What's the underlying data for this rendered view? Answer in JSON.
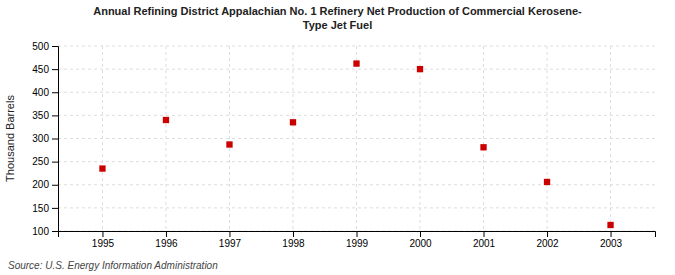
{
  "chart_data": {
    "type": "scatter",
    "title": "Annual Refining District Appalachian No. 1 Refinery Net Production of Commercial Kerosene-\nType Jet Fuel",
    "ylabel": "Thousand Barrels",
    "annotations": [
      "Source: U.S. Energy Information Administration"
    ],
    "x": [
      1995,
      1996,
      1997,
      1998,
      1999,
      2000,
      2001,
      2002,
      2003
    ],
    "values": [
      235,
      340,
      287,
      335,
      462,
      450,
      281,
      206,
      113
    ],
    "xlim": [
      1994.3,
      2003.7
    ],
    "ylim": [
      100,
      500
    ],
    "xticks": [
      1995,
      1996,
      1997,
      1998,
      1999,
      2000,
      2001,
      2002,
      2003
    ],
    "yticks": [
      100,
      150,
      200,
      250,
      300,
      350,
      400,
      450,
      500
    ],
    "color": "#cc0000",
    "marker": "square",
    "grid": true
  }
}
